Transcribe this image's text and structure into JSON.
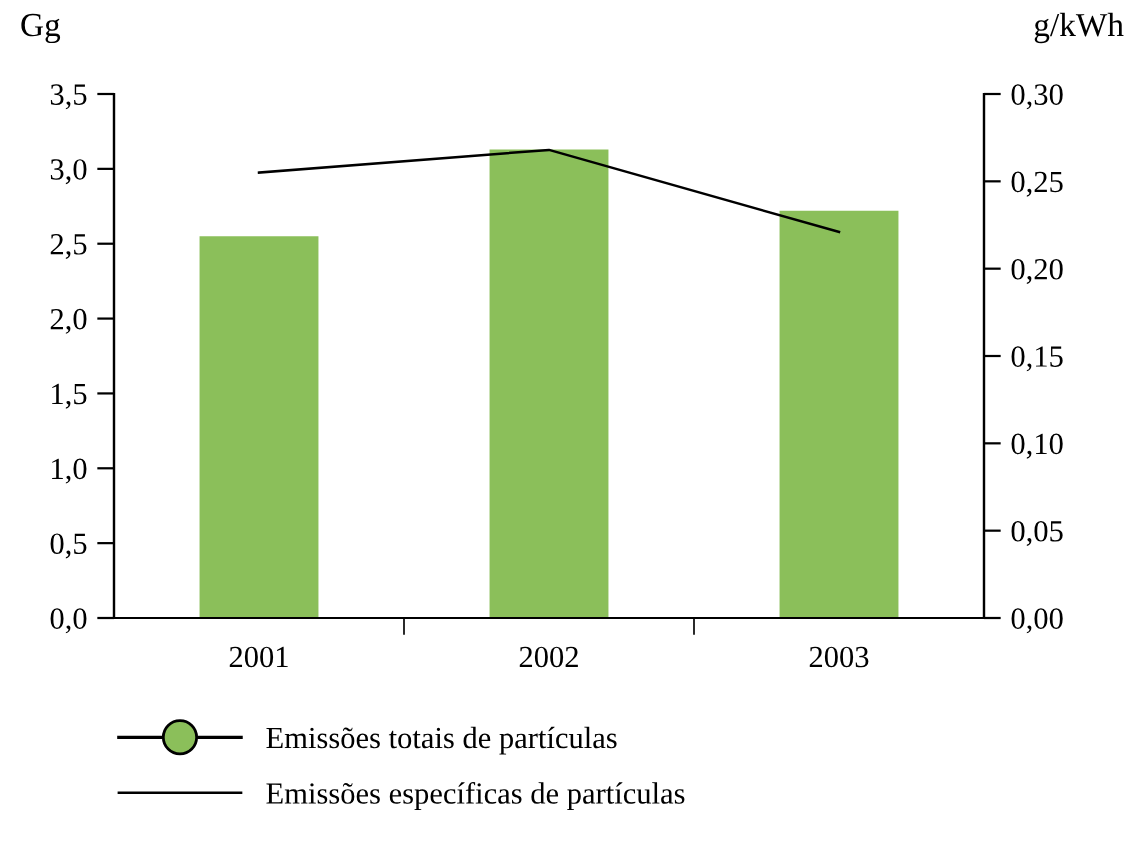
{
  "chart_data": {
    "type": "bar",
    "ylabel": "Gg",
    "y2label": "g/kWh",
    "categories": [
      "2001",
      "2002",
      "2003"
    ],
    "series": [
      {
        "name": "Emissões totais de partículas",
        "color": "#8bbf5a",
        "values": [
          2.55,
          3.13,
          2.72
        ]
      },
      {
        "name": "Emissões específicas de partículas",
        "type": "line",
        "axis": "y2",
        "color": "#000000",
        "values": [
          0.255,
          0.268,
          0.221
        ]
      }
    ],
    "ylim": [
      0,
      3.5
    ],
    "yticks": [
      {
        "value": 0,
        "label": "0,0"
      },
      {
        "value": 0.5,
        "label": "0,5"
      },
      {
        "value": 1,
        "label": "1,0"
      },
      {
        "value": 1.5,
        "label": "1,5"
      },
      {
        "value": 2,
        "label": "2,0"
      },
      {
        "value": 2.5,
        "label": "2,5"
      },
      {
        "value": 3,
        "label": "3,0"
      },
      {
        "value": 3.5,
        "label": "3,5"
      }
    ],
    "y2lim": [
      0,
      0.3
    ],
    "y2ticks": [
      {
        "value": 0,
        "label": "0,00"
      },
      {
        "value": 0.05,
        "label": "0,05"
      },
      {
        "value": 0.1,
        "label": "0,10"
      },
      {
        "value": 0.15,
        "label": "0,15"
      },
      {
        "value": 0.2,
        "label": "0,20"
      },
      {
        "value": 0.25,
        "label": "0,25"
      },
      {
        "value": 0.3,
        "label": "0,30"
      }
    ],
    "grid": false,
    "legend": "bottom",
    "marker": "none",
    "line_style": "solid"
  }
}
